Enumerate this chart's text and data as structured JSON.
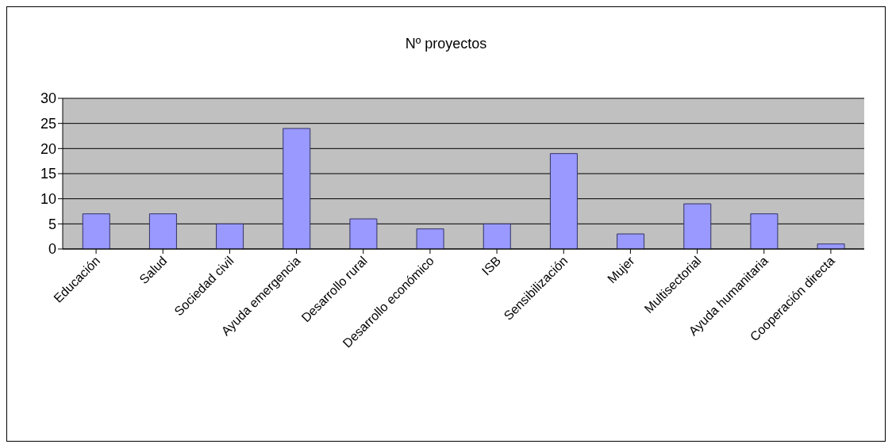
{
  "chart_data": {
    "type": "bar",
    "title": "Nº proyectos",
    "categories": [
      "Educación",
      "Salud",
      "Sociedad civil",
      "Ayuda emergencia",
      "Desarrollo rural",
      "Desarrollo económico",
      "ISB",
      "Sensibilización",
      "Mujer",
      "Multisectorial",
      "Ayuda humanitaria",
      "Cooperación directa"
    ],
    "values": [
      7,
      7,
      5,
      24,
      6,
      4,
      5,
      19,
      3,
      9,
      7,
      1
    ],
    "color": "#9999ff",
    "ylim": [
      0,
      30
    ],
    "yticks": [
      0,
      5,
      10,
      15,
      20,
      25,
      30
    ],
    "grid": "y",
    "legend": false
  }
}
